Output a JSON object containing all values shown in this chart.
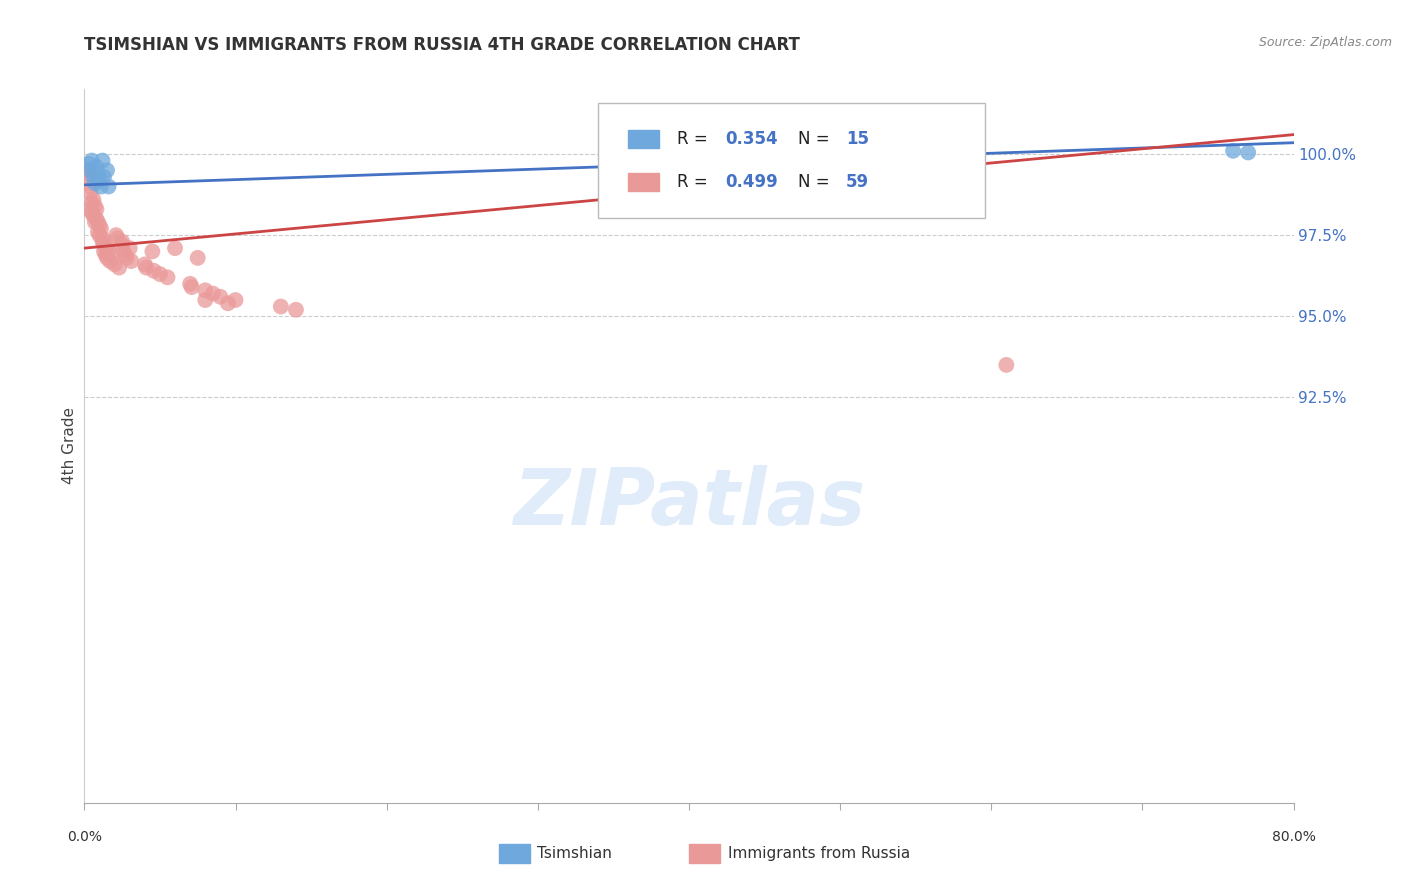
{
  "title": "TSIMSHIAN VS IMMIGRANTS FROM RUSSIA 4TH GRADE CORRELATION CHART",
  "source": "Source: ZipAtlas.com",
  "ylabel": "4th Grade",
  "xlim": [
    0.0,
    0.8
  ],
  "ylim": [
    80.0,
    102.0
  ],
  "legend_label1": "Tsimshian",
  "legend_label2": "Immigrants from Russia",
  "R1": 0.354,
  "N1": 15,
  "R2": 0.499,
  "N2": 59,
  "tsimshian_color": "#6fa8dc",
  "russia_color": "#ea9999",
  "trendline1_color": "#4472c4",
  "trendline2_color": "#cc4444",
  "tsim_trend_x0": 0.0,
  "tsim_trend_y0": 99.05,
  "tsim_trend_x1": 0.8,
  "tsim_trend_y1": 100.35,
  "russia_trend_x0": 0.0,
  "russia_trend_y0": 97.1,
  "russia_trend_x1": 0.8,
  "russia_trend_y1": 100.6,
  "ytick_positions": [
    92.5,
    95.0,
    97.5,
    100.0
  ],
  "ytick_labels": [
    "92.5%",
    "95.0%",
    "97.5%",
    "100.0%"
  ],
  "tsimshian_x": [
    0.003,
    0.004,
    0.005,
    0.006,
    0.007,
    0.008,
    0.009,
    0.01,
    0.011,
    0.012,
    0.013,
    0.015,
    0.016,
    0.76,
    0.77
  ],
  "tsimshian_y": [
    99.7,
    99.5,
    99.8,
    99.3,
    99.1,
    99.6,
    99.4,
    99.2,
    99.0,
    99.8,
    99.3,
    99.5,
    99.0,
    100.1,
    100.05
  ],
  "russia_x": [
    0.002,
    0.003,
    0.003,
    0.004,
    0.004,
    0.005,
    0.005,
    0.006,
    0.006,
    0.007,
    0.007,
    0.008,
    0.008,
    0.009,
    0.009,
    0.01,
    0.01,
    0.011,
    0.012,
    0.012,
    0.013,
    0.013,
    0.014,
    0.015,
    0.015,
    0.016,
    0.017,
    0.018,
    0.02,
    0.021,
    0.022,
    0.023,
    0.025,
    0.025,
    0.026,
    0.027,
    0.028,
    0.03,
    0.031,
    0.04,
    0.041,
    0.045,
    0.046,
    0.05,
    0.055,
    0.06,
    0.07,
    0.071,
    0.075,
    0.08,
    0.08,
    0.085,
    0.09,
    0.095,
    0.1,
    0.13,
    0.14,
    0.003,
    0.61
  ],
  "russia_y": [
    99.5,
    99.3,
    99.4,
    99.0,
    98.8,
    98.5,
    98.2,
    98.6,
    98.1,
    98.4,
    97.9,
    98.3,
    98.0,
    97.9,
    97.6,
    97.8,
    97.5,
    97.7,
    97.4,
    97.3,
    97.2,
    97.0,
    96.9,
    97.1,
    96.8,
    97.0,
    96.7,
    96.9,
    96.6,
    97.5,
    97.4,
    96.5,
    97.3,
    97.2,
    97.0,
    96.9,
    96.8,
    97.1,
    96.7,
    96.6,
    96.5,
    97.0,
    96.4,
    96.3,
    96.2,
    97.1,
    96.0,
    95.9,
    96.8,
    95.8,
    95.5,
    95.7,
    95.6,
    95.4,
    95.5,
    95.3,
    95.2,
    98.3,
    93.5
  ]
}
